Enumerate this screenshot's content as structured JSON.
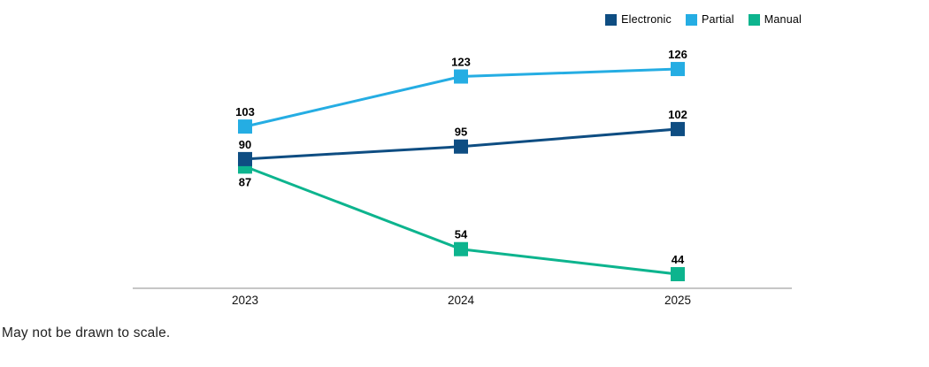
{
  "chart": {
    "footnote": "May not be drawn to scale."
  },
  "chart_data": {
    "type": "line",
    "categories": [
      "2023",
      "2024",
      "2025"
    ],
    "series": [
      {
        "name": "Electronic",
        "color": "#0e4d82",
        "values": [
          90,
          95,
          102
        ],
        "label_positions": [
          "above",
          "above",
          "above"
        ]
      },
      {
        "name": "Partial",
        "color": "#25ade3",
        "values": [
          103,
          123,
          126
        ],
        "label_positions": [
          "above",
          "above",
          "above"
        ]
      },
      {
        "name": "Manual",
        "color": "#0db48e",
        "values": [
          87,
          54,
          44
        ],
        "label_positions": [
          "below",
          "above",
          "above"
        ]
      }
    ],
    "legend_position": "top-right",
    "legend_labels": [
      "Electronic",
      "Partial",
      "Manual"
    ],
    "marker": "square",
    "grid": false,
    "axis_color": "#b3b3b3",
    "value_label_color": "#000000",
    "annotations": []
  }
}
